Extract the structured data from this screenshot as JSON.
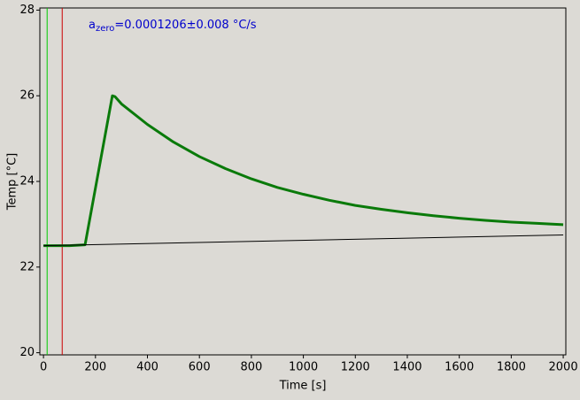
{
  "chart_data": {
    "type": "line",
    "annotation": {
      "base": "a",
      "sub": "zero",
      "rest": "=0.0001206±0.008 °C/s"
    },
    "x_label": "Time [s]",
    "y_label": "Temp [°C]",
    "xlim": [
      -14,
      2010
    ],
    "ylim": [
      19.95,
      28.05
    ],
    "xticks": [
      0,
      200,
      400,
      600,
      800,
      1000,
      1200,
      1400,
      1600,
      1800,
      2000
    ],
    "yticks": [
      20,
      22,
      24,
      26,
      28
    ],
    "markers": [
      {
        "x": 14,
        "color": "#00cc00"
      },
      {
        "x": 72,
        "color": "#cc0000"
      }
    ],
    "series": [
      {
        "color": "#0a7a0a",
        "width": 3,
        "x": [
          0,
          100,
          160,
          265,
          275,
          300,
          400,
          500,
          600,
          700,
          800,
          900,
          1000,
          1100,
          1200,
          1300,
          1400,
          1500,
          1600,
          1700,
          1800,
          1900,
          2000
        ],
        "values": [
          22.5,
          22.5,
          22.52,
          26.0,
          25.98,
          25.81,
          25.33,
          24.92,
          24.58,
          24.3,
          24.06,
          23.86,
          23.7,
          23.56,
          23.44,
          23.35,
          23.27,
          23.2,
          23.14,
          23.09,
          23.05,
          23.02,
          22.99
        ]
      },
      {
        "color": "#000000",
        "width": 1,
        "x": [
          0,
          2000
        ],
        "values": [
          22.5,
          22.75
        ]
      }
    ]
  }
}
